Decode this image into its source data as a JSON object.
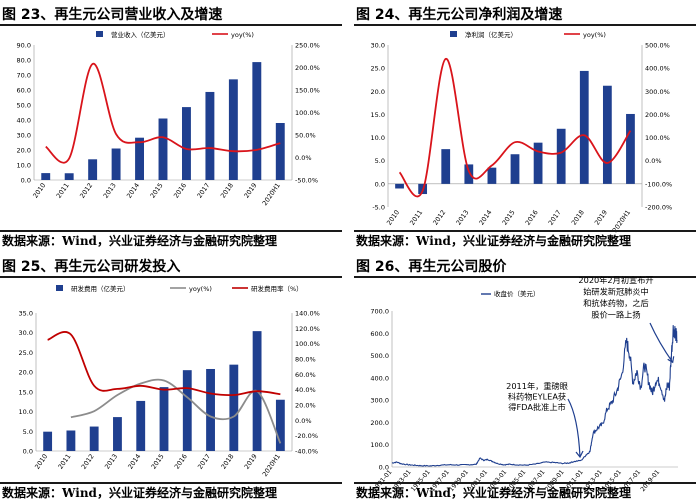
{
  "source_label": "数据来源：Wind，兴业证券经济与金融研究院整理",
  "chart_data": [
    {
      "id": "fig23",
      "title": "图 23、再生元公司营业收入及增速",
      "type": "bar",
      "categories": [
        "2010",
        "2011",
        "2012",
        "2013",
        "2014",
        "2015",
        "2016",
        "2017",
        "2018",
        "2019",
        "2020H1"
      ],
      "series": [
        {
          "name": "营业收入（亿美元）",
          "type": "bar",
          "axis": "left",
          "color": "#1f3f8f",
          "values": [
            4.6,
            4.5,
            13.8,
            21.0,
            28.2,
            41.0,
            48.6,
            58.7,
            67.1,
            78.6,
            38.0
          ]
        },
        {
          "name": "yoy(%)",
          "type": "line",
          "axis": "right",
          "color": "#d9141b",
          "values": [
            24,
            -2,
            208,
            52,
            34,
            45,
            19,
            21,
            14,
            17,
            32
          ]
        }
      ],
      "yleft": {
        "min": 0,
        "max": 90,
        "ticks": [
          0,
          10,
          20,
          30,
          40,
          50,
          60,
          70,
          80,
          90
        ],
        "format": "0.0"
      },
      "yright": {
        "min": -50,
        "max": 250,
        "ticks": [
          -50,
          0,
          50,
          100,
          150,
          200,
          250
        ],
        "format": "pct1"
      }
    },
    {
      "id": "fig24",
      "title": "图 24、再生元公司净利润及增速",
      "type": "bar",
      "categories": [
        "2010",
        "2011",
        "2012",
        "2013",
        "2014",
        "2015",
        "2016",
        "2017",
        "2018",
        "2019",
        "2020H1"
      ],
      "series": [
        {
          "name": "净利润（亿美元）",
          "type": "bar",
          "axis": "left",
          "color": "#1f3f8f",
          "values": [
            -1.0,
            -2.2,
            7.5,
            4.2,
            3.5,
            6.4,
            8.9,
            11.9,
            24.4,
            21.2,
            15.1
          ]
        },
        {
          "name": "yoy(%)",
          "type": "line",
          "axis": "right",
          "color": "#d9141b",
          "values": [
            -50,
            -130,
            440,
            -45,
            -20,
            80,
            40,
            35,
            110,
            -10,
            130
          ]
        }
      ],
      "yleft": {
        "min": -5,
        "max": 30,
        "ticks": [
          -5,
          0,
          5,
          10,
          15,
          20,
          25,
          30
        ],
        "format": "0.0"
      },
      "yright": {
        "min": -200,
        "max": 500,
        "ticks": [
          -200,
          -100,
          0,
          100,
          200,
          300,
          400,
          500
        ],
        "format": "pct1"
      }
    },
    {
      "id": "fig25",
      "title": "图 25、再生元公司研发投入",
      "type": "bar",
      "categories": [
        "2010",
        "2011",
        "2012",
        "2013",
        "2014",
        "2015",
        "2016",
        "2017",
        "2018",
        "2019",
        "2020H1"
      ],
      "series": [
        {
          "name": "研发费用（亿美元）",
          "type": "bar",
          "axis": "left",
          "color": "#1f3f8f",
          "values": [
            4.9,
            5.2,
            6.2,
            8.6,
            12.7,
            16.2,
            20.5,
            20.8,
            21.9,
            30.4,
            13.0
          ]
        },
        {
          "name": "yoy(%)",
          "type": "line",
          "axis": "right",
          "color": "#8c8c8c",
          "values": [
            null,
            4,
            12,
            33,
            48,
            52,
            30,
            5,
            5,
            38,
            -30
          ]
        },
        {
          "name": "研发费用率（%）",
          "type": "line",
          "axis": "right",
          "color": "#c00000",
          "values": [
            105,
            112,
            45,
            41,
            45,
            40,
            42,
            35,
            33,
            38,
            34
          ]
        }
      ],
      "yleft": {
        "min": 0,
        "max": 35,
        "ticks": [
          0,
          5,
          10,
          15,
          20,
          25,
          30,
          35
        ],
        "format": "0.0"
      },
      "yright": {
        "min": -40,
        "max": 140,
        "ticks": [
          -40,
          -20,
          0,
          20,
          40,
          60,
          80,
          100,
          120,
          140
        ],
        "format": "pct1"
      }
    },
    {
      "id": "fig26",
      "title": "图 26、再生元公司股价",
      "type": "line",
      "series_name": "收盘价（美元）",
      "color": "#1f3f8f",
      "x_labels": [
        "1991-01",
        "1993-01",
        "1995-01",
        "1997-01",
        "1999-01",
        "2001-01",
        "2003-01",
        "2005-01",
        "2007-01",
        "2009-01",
        "2011-01",
        "2013-01",
        "2015-01",
        "2017-01",
        "2019-01"
      ],
      "x_range": [
        1991,
        2020.9
      ],
      "points": [
        [
          1991.0,
          18
        ],
        [
          1991.5,
          22
        ],
        [
          1992.0,
          14
        ],
        [
          1992.7,
          10
        ],
        [
          1993.3,
          8
        ],
        [
          1994.0,
          6
        ],
        [
          1995.0,
          5
        ],
        [
          1996.0,
          8
        ],
        [
          1997.0,
          10
        ],
        [
          1998.0,
          9
        ],
        [
          1999.0,
          10
        ],
        [
          1999.8,
          12
        ],
        [
          2000.2,
          40
        ],
        [
          2000.6,
          30
        ],
        [
          2001.0,
          34
        ],
        [
          2001.5,
          25
        ],
        [
          2002.0,
          16
        ],
        [
          2002.7,
          10
        ],
        [
          2003.3,
          12
        ],
        [
          2004.0,
          10
        ],
        [
          2005.0,
          8
        ],
        [
          2006.0,
          13
        ],
        [
          2007.0,
          22
        ],
        [
          2008.0,
          20
        ],
        [
          2008.8,
          16
        ],
        [
          2009.5,
          18
        ],
        [
          2010.0,
          24
        ],
        [
          2010.8,
          30
        ],
        [
          2011.3,
          55
        ],
        [
          2011.7,
          70
        ],
        [
          2012.0,
          150
        ],
        [
          2012.5,
          175
        ],
        [
          2013.0,
          190
        ],
        [
          2013.5,
          260
        ],
        [
          2014.0,
          290
        ],
        [
          2014.5,
          340
        ],
        [
          2015.0,
          410
        ],
        [
          2015.5,
          560
        ],
        [
          2015.8,
          520
        ],
        [
          2016.2,
          380
        ],
        [
          2016.6,
          430
        ],
        [
          2017.0,
          360
        ],
        [
          2017.4,
          460
        ],
        [
          2017.8,
          390
        ],
        [
          2018.2,
          330
        ],
        [
          2018.6,
          390
        ],
        [
          2019.0,
          380
        ],
        [
          2019.5,
          300
        ],
        [
          2019.8,
          370
        ],
        [
          2020.0,
          360
        ],
        [
          2020.2,
          500
        ],
        [
          2020.4,
          620
        ],
        [
          2020.6,
          610
        ],
        [
          2020.8,
          570
        ]
      ],
      "ylim": [
        0,
        700
      ],
      "yticks": [
        0,
        100,
        200,
        300,
        400,
        500,
        600,
        700
      ],
      "annotations": [
        {
          "text": [
            "2011年，重磅眼",
            "科药物EYLEA获",
            "得FDA批准上市"
          ]
        },
        {
          "text": [
            "2020年2月初宣布开",
            "始研发新冠肺炎中",
            "和抗体药物，之后",
            "股价一路上扬"
          ]
        }
      ]
    }
  ]
}
